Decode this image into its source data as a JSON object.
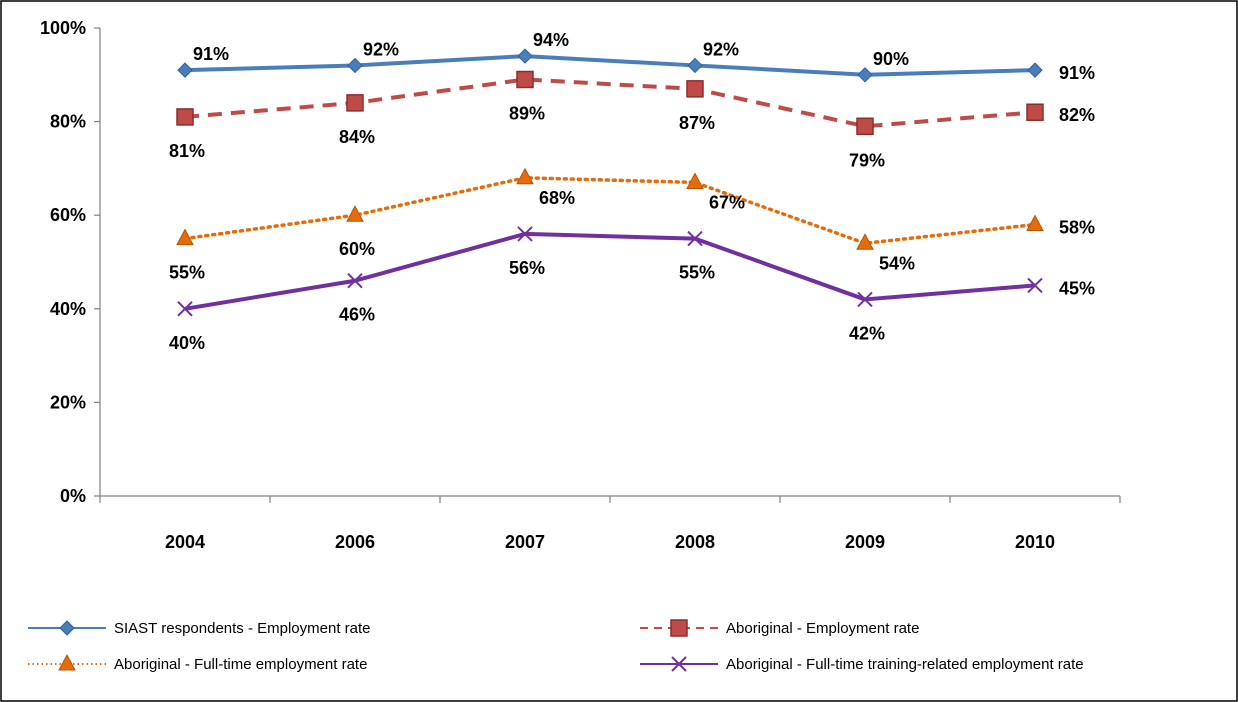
{
  "chart_data": {
    "type": "line",
    "categories": [
      "2004",
      "2006",
      "2007",
      "2008",
      "2009",
      "2010"
    ],
    "ylim": [
      0,
      100
    ],
    "yticks": [
      "0%",
      "20%",
      "40%",
      "60%",
      "80%",
      "100%"
    ],
    "grid": false,
    "legend_position": "bottom",
    "series": [
      {
        "name": "SIAST respondents - Employment rate",
        "values": [
          91,
          92,
          94,
          92,
          90,
          91
        ],
        "labels": [
          "91%",
          "92%",
          "94%",
          "92%",
          "90%",
          "91%"
        ],
        "color": "#4a7ebb",
        "marker": "diamond",
        "dash": "solid",
        "label_pos": [
          "above",
          "above",
          "above",
          "above",
          "above",
          "right"
        ]
      },
      {
        "name": "Aboriginal - Employment rate",
        "values": [
          81,
          84,
          89,
          87,
          79,
          82
        ],
        "labels": [
          "81%",
          "84%",
          "89%",
          "87%",
          "79%",
          "82%"
        ],
        "color": "#be4b48",
        "marker": "square",
        "dash": "dashed",
        "label_pos": [
          "below",
          "below",
          "below",
          "below",
          "below",
          "right"
        ]
      },
      {
        "name": "Aboriginal - Full-time employment rate",
        "values": [
          55,
          60,
          68,
          67,
          54,
          58
        ],
        "labels": [
          "55%",
          "60%",
          "68%",
          "67%",
          "54%",
          "58%"
        ],
        "color": "#e46c0a",
        "marker": "triangle",
        "dash": "dotted",
        "label_pos": [
          "below",
          "below",
          "below-right",
          "below-right",
          "below-right",
          "right"
        ]
      },
      {
        "name": "Aboriginal - Full-time training-related employment rate",
        "values": [
          40,
          46,
          56,
          55,
          42,
          45
        ],
        "labels": [
          "40%",
          "46%",
          "56%",
          "55%",
          "42%",
          "45%"
        ],
        "color": "#7030a0",
        "marker": "x",
        "dash": "solid",
        "label_pos": [
          "below",
          "below",
          "below",
          "below",
          "below",
          "right"
        ]
      }
    ]
  }
}
